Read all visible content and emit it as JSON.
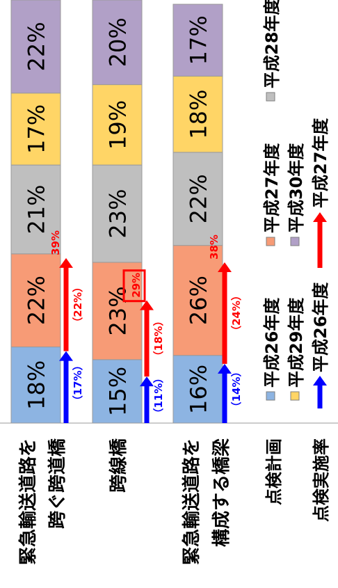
{
  "chart_data": {
    "type": "bar",
    "orientation": "stacked-horizontal",
    "categories": [
      [
        "緊急輸送道路を",
        "跨ぐ跨道橋"
      ],
      [
        "跨線橋"
      ],
      [
        "緊急輸送道路を",
        "構成する橋梁"
      ]
    ],
    "series": [
      {
        "name": "平成26年度",
        "color": "#8db4e2",
        "values": [
          18,
          15,
          16
        ]
      },
      {
        "name": "平成27年度",
        "color": "#f79b76",
        "values": [
          22,
          23,
          26
        ]
      },
      {
        "name": "平成28年度",
        "color": "#bfbfbf",
        "values": [
          21,
          23,
          22
        ]
      },
      {
        "name": "平成29年度",
        "color": "#ffd566",
        "values": [
          17,
          19,
          18
        ]
      },
      {
        "name": "平成30年度",
        "color": "#b1a0c7",
        "values": [
          22,
          20,
          17
        ]
      }
    ],
    "value_labels": [
      [
        "18%",
        "22%",
        "21%",
        "17%",
        "22%"
      ],
      [
        "15%",
        "23%",
        "23%",
        "19%",
        "20%"
      ],
      [
        "16%",
        "26%",
        "22%",
        "18%",
        "17%"
      ]
    ],
    "implementation_rates": {
      "h26": {
        "values": [
          17,
          11,
          14
        ],
        "labels": [
          "（17%）",
          "（11%）",
          "（14%）"
        ],
        "color": "#0000ff"
      },
      "h27_increment": {
        "values": [
          22,
          18,
          24
        ],
        "labels": [
          "（22%）",
          "（18%）",
          "（24%）"
        ],
        "color": "#ff0000"
      },
      "h27_total": {
        "values": [
          39,
          29,
          38
        ],
        "labels": [
          "39%",
          "29%",
          "38%"
        ],
        "color": "#ff0000",
        "boxed_index": 1
      }
    },
    "xlim": [
      0,
      100
    ],
    "legend": {
      "position": "bottom",
      "plan_title": "点検計画",
      "rate_title": "点検実施率",
      "rate_items": [
        {
          "name": "平成26年度",
          "color": "#0000ff"
        },
        {
          "name": "平成27年度",
          "color": "#ff0000"
        }
      ]
    }
  }
}
